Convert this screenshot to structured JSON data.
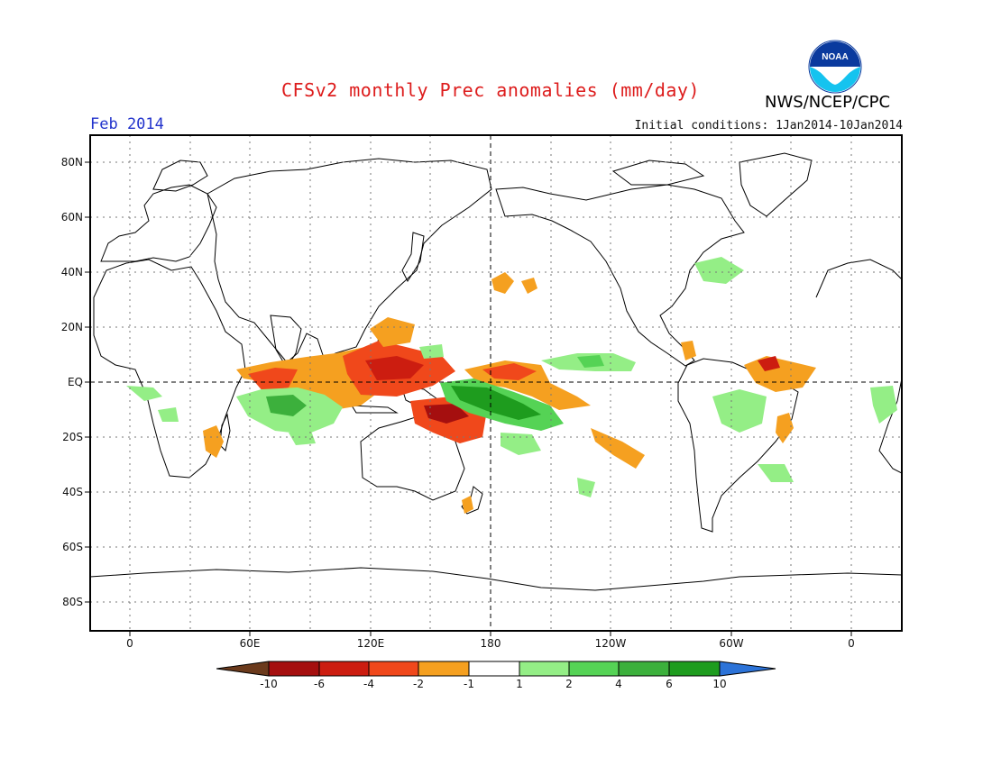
{
  "header": {
    "title": "CFSv2 monthly Prec anomalies (mm/day)",
    "agency": "NWS/NCEP/CPC",
    "period": "Feb 2014",
    "initial_conditions": "Initial conditions: 1Jan2014-10Jan2014",
    "logo_text": "NOAA"
  },
  "axes": {
    "y_ticks": [
      "80N",
      "60N",
      "40N",
      "20N",
      "EQ",
      "20S",
      "40S",
      "60S",
      "80S"
    ],
    "x_ticks": [
      "0",
      "60E",
      "120E",
      "180",
      "120W",
      "60W",
      "0"
    ]
  },
  "colorbar": {
    "labels": [
      "-10",
      "-6",
      "-4",
      "-2",
      "-1",
      "1",
      "2",
      "4",
      "6",
      "10"
    ],
    "colors": [
      "#6b3a1c",
      "#a50f0f",
      "#cc1d10",
      "#f0481b",
      "#f5a020",
      "#ffffff",
      "#94ee86",
      "#55d355",
      "#3cb03c",
      "#1e9c1e",
      "#2c73d8"
    ]
  },
  "colors": {
    "title": "#dd1c1c",
    "period": "#2233cc",
    "logo_blue": "#0a3a9e",
    "logo_cyan": "#15c3ef"
  }
}
